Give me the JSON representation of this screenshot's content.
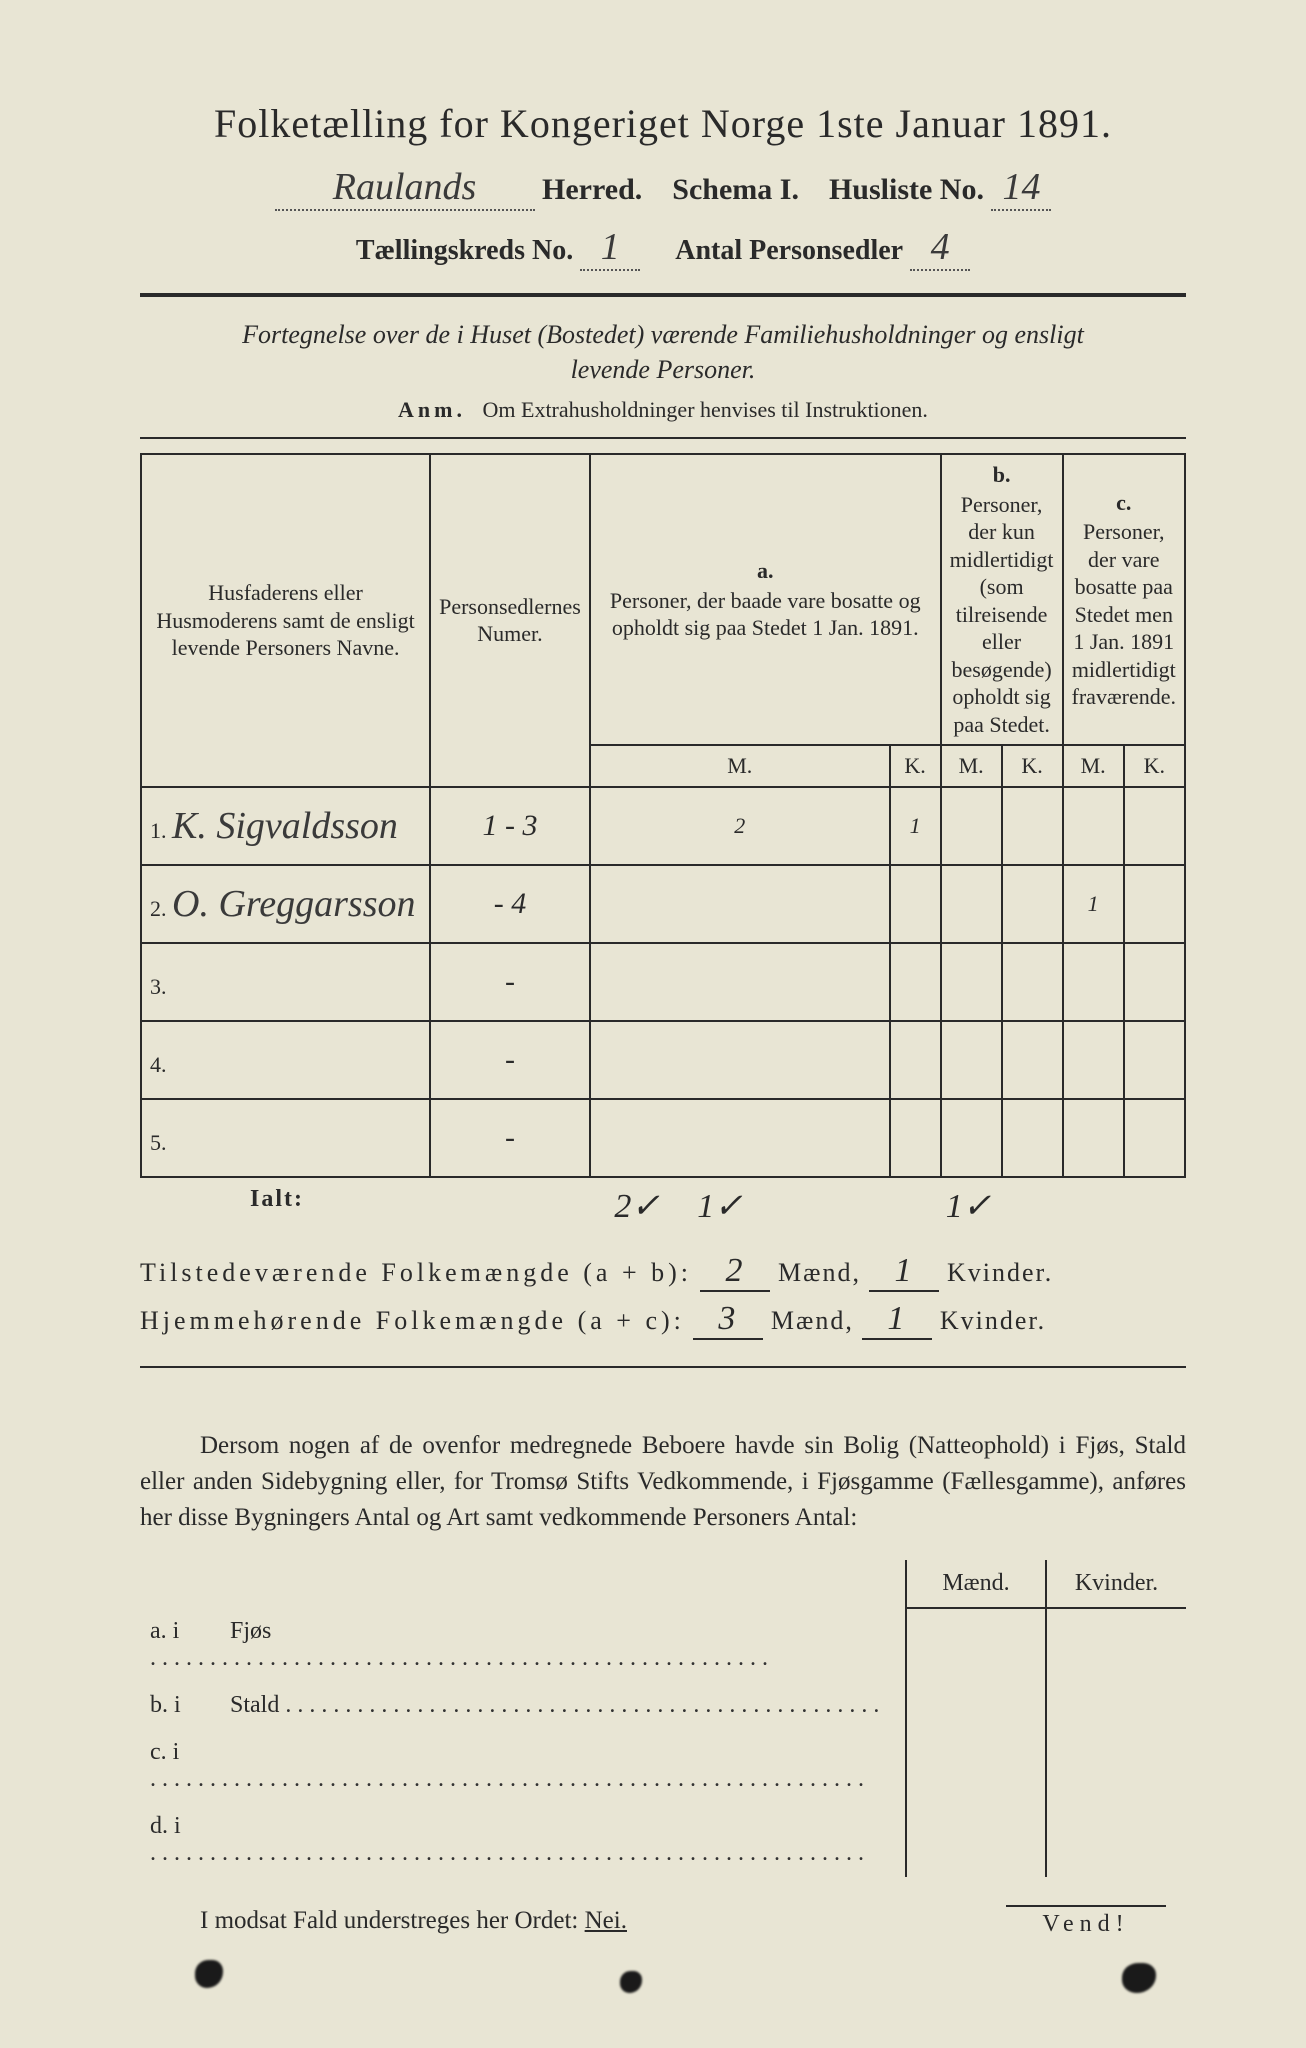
{
  "colors": {
    "paper": "#e8e5d4",
    "ink": "#2a2a2a",
    "handwriting": "#3a3a3a"
  },
  "title": "Folketælling for Kongeriget Norge 1ste Januar 1891.",
  "header": {
    "herred_hw": "Raulands",
    "herred_label": "Herred.",
    "schema_label": "Schema I.",
    "husliste_label": "Husliste No.",
    "husliste_no_hw": "14",
    "kreds_label": "Tællingskreds No.",
    "kreds_no_hw": "1",
    "antal_label": "Antal Personsedler",
    "antal_hw": "4"
  },
  "intro": {
    "line1": "Fortegnelse over de i Huset (Bostedet) værende Familiehusholdninger og ensligt",
    "line2": "levende Personer.",
    "anm_label": "Anm.",
    "anm_text": "Om Extrahusholdninger henvises til Instruktionen."
  },
  "table": {
    "col_names": "Husfaderens eller Husmoderens samt de ensligt levende Personers Navne.",
    "col_numer": "Personsedlernes Numer.",
    "col_a_label": "a.",
    "col_a_text": "Personer, der baade vare bosatte og opholdt sig paa Stedet 1 Jan. 1891.",
    "col_b_label": "b.",
    "col_b_text": "Personer, der kun midlertidigt (som tilreisende eller besøgende) opholdt sig paa Stedet.",
    "col_c_label": "c.",
    "col_c_text": "Personer, der vare bosatte paa Stedet men 1 Jan. 1891 midlertidigt fraværende.",
    "m": "M.",
    "k": "K.",
    "rows": [
      {
        "n": "1.",
        "name_hw": "K. Sigvaldsson",
        "numer_hw": "1 - 3",
        "a_m": "2",
        "a_k": "1",
        "b_m": "",
        "b_k": "",
        "c_m": "",
        "c_k": ""
      },
      {
        "n": "2.",
        "name_hw": "O. Greggarsson",
        "numer_hw": "- 4",
        "a_m": "",
        "a_k": "",
        "b_m": "",
        "b_k": "",
        "c_m": "1",
        "c_k": ""
      },
      {
        "n": "3.",
        "name_hw": "",
        "numer_hw": "-",
        "a_m": "",
        "a_k": "",
        "b_m": "",
        "b_k": "",
        "c_m": "",
        "c_k": ""
      },
      {
        "n": "4.",
        "name_hw": "",
        "numer_hw": "-",
        "a_m": "",
        "a_k": "",
        "b_m": "",
        "b_k": "",
        "c_m": "",
        "c_k": ""
      },
      {
        "n": "5.",
        "name_hw": "",
        "numer_hw": "-",
        "a_m": "",
        "a_k": "",
        "b_m": "",
        "b_k": "",
        "c_m": "",
        "c_k": ""
      }
    ],
    "ialt_label": "Ialt:",
    "ialt": {
      "a_m": "2✓",
      "a_k": "1✓",
      "b_m": "",
      "b_k": "",
      "c_m": "1✓",
      "c_k": ""
    }
  },
  "summary": {
    "line1_label": "Tilstedeværende Folkemængde (a + b):",
    "line1_m": "2",
    "line1_k": "1",
    "line2_label": "Hjemmehørende Folkemængde (a + c):",
    "line2_m": "3",
    "line2_k": "1",
    "maend": "Mænd,",
    "kvinder": "Kvinder."
  },
  "para": "Dersom nogen af de ovenfor medregnede Beboere havde sin Bolig (Natteophold) i Fjøs, Stald eller anden Sidebygning eller, for Tromsø Stifts Vedkommende, i Fjøsgamme (Fællesgamme), anføres her disse Bygningers Antal og Art samt vedkommende Personers Antal:",
  "subtable": {
    "maend": "Mænd.",
    "kvinder": "Kvinder.",
    "rows": [
      {
        "label": "a.  i",
        "text": "Fjøs"
      },
      {
        "label": "b.  i",
        "text": "Stald"
      },
      {
        "label": "c.  i",
        "text": ""
      },
      {
        "label": "d.  i",
        "text": ""
      }
    ]
  },
  "modsat": "I modsat Fald understreges her Ordet:",
  "nei": "Nei.",
  "vend": "Vend!"
}
